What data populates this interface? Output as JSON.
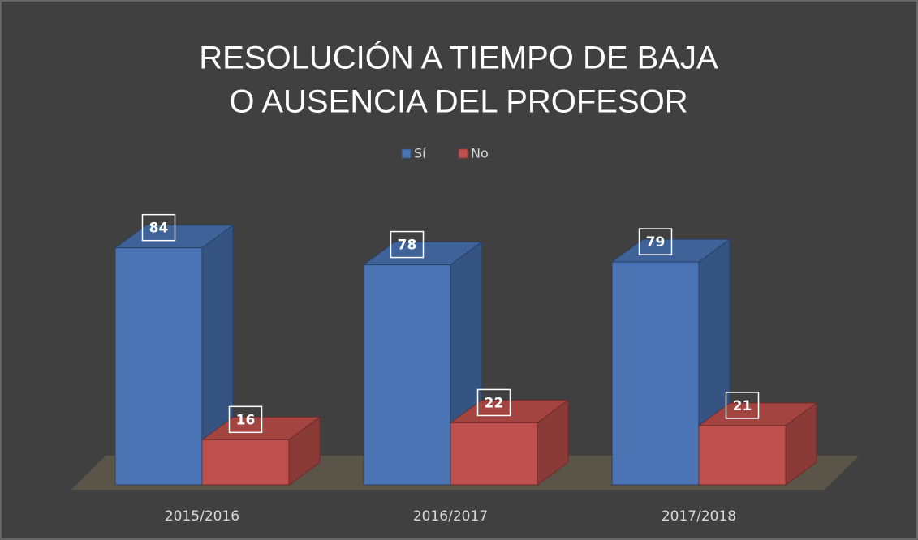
{
  "chart_data": {
    "type": "bar3d",
    "title": [
      "RESOLUCIÓN A TIEMPO DE BAJA",
      "O AUSENCIA DEL PROFESOR"
    ],
    "categories": [
      "2015/2016",
      "2016/2017",
      "2017/2018"
    ],
    "series": [
      {
        "name": "Sí",
        "color": "#4a74b4",
        "values": [
          84,
          78,
          79
        ]
      },
      {
        "name": "No",
        "color": "#c0504d",
        "values": [
          16,
          22,
          21
        ]
      }
    ],
    "legend": "top"
  }
}
